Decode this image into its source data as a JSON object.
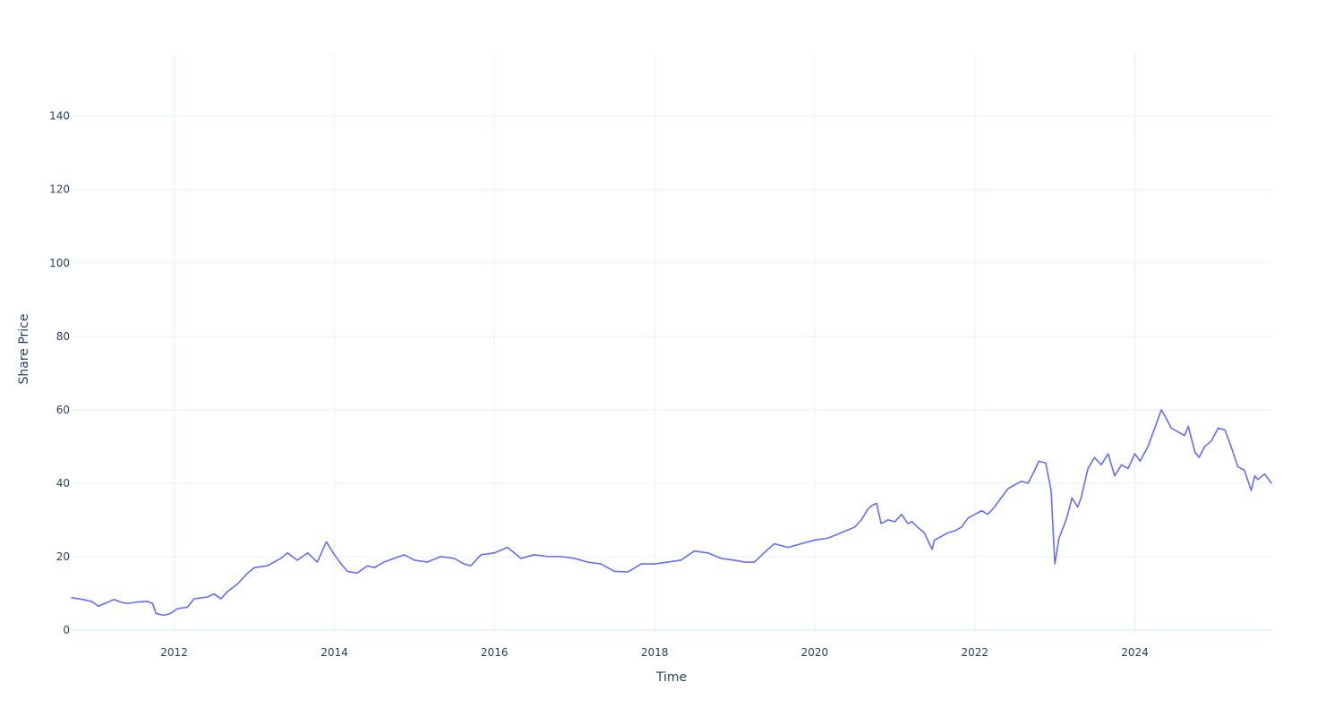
{
  "chart_data": {
    "type": "line",
    "title": "",
    "xlabel": "Time",
    "ylabel": "Share Price",
    "x_tick_labels": [
      "2012",
      "2014",
      "2016",
      "2018",
      "2020",
      "2022",
      "2024"
    ],
    "y_tick_labels": [
      "0",
      "20",
      "40",
      "60",
      "80",
      "100",
      "120",
      "140"
    ],
    "xlim": [
      "2010-09-20",
      "2025-09-15"
    ],
    "ylim": [
      -1,
      157
    ],
    "grid": true,
    "legend": "none",
    "series": [
      {
        "color": "#636efa",
        "points": [
          [
            "2010-09-20",
            8.8
          ],
          [
            "2010-11-01",
            8.4
          ],
          [
            "2010-12-20",
            7.8
          ],
          [
            "2011-01-20",
            6.5
          ],
          [
            "2011-03-01",
            7.5
          ],
          [
            "2011-04-01",
            8.3
          ],
          [
            "2011-05-01",
            7.6
          ],
          [
            "2011-06-01",
            7.2
          ],
          [
            "2011-07-15",
            7.6
          ],
          [
            "2011-09-01",
            7.8
          ],
          [
            "2011-09-25",
            7.2
          ],
          [
            "2011-10-10",
            4.5
          ],
          [
            "2011-11-15",
            4.0
          ],
          [
            "2011-12-15",
            4.5
          ],
          [
            "2012-01-15",
            5.8
          ],
          [
            "2012-03-01",
            6.2
          ],
          [
            "2012-04-01",
            8.5
          ],
          [
            "2012-06-01",
            9.0
          ],
          [
            "2012-07-01",
            9.8
          ],
          [
            "2012-08-01",
            8.5
          ],
          [
            "2012-09-01",
            10.5
          ],
          [
            "2012-10-15",
            12.5
          ],
          [
            "2012-12-01",
            15.5
          ],
          [
            "2013-01-01",
            17.0
          ],
          [
            "2013-03-01",
            17.5
          ],
          [
            "2013-05-01",
            19.5
          ],
          [
            "2013-06-01",
            21.0
          ],
          [
            "2013-07-15",
            19.0
          ],
          [
            "2013-09-01",
            21.0
          ],
          [
            "2013-10-15",
            18.5
          ],
          [
            "2013-11-25",
            24.0
          ],
          [
            "2014-01-01",
            20.5
          ],
          [
            "2014-02-01",
            18.0
          ],
          [
            "2014-03-01",
            16.0
          ],
          [
            "2014-04-15",
            15.5
          ],
          [
            "2014-06-01",
            17.5
          ],
          [
            "2014-07-01",
            17.0
          ],
          [
            "2014-08-15",
            18.5
          ],
          [
            "2014-10-01",
            19.5
          ],
          [
            "2014-11-15",
            20.5
          ],
          [
            "2015-01-01",
            19.0
          ],
          [
            "2015-03-01",
            18.5
          ],
          [
            "2015-05-01",
            20.0
          ],
          [
            "2015-07-01",
            19.5
          ],
          [
            "2015-08-15",
            18.0
          ],
          [
            "2015-09-15",
            17.5
          ],
          [
            "2015-11-01",
            20.5
          ],
          [
            "2016-01-01",
            21.0
          ],
          [
            "2016-03-01",
            22.5
          ],
          [
            "2016-05-01",
            19.5
          ],
          [
            "2016-07-01",
            20.5
          ],
          [
            "2016-09-01",
            20.0
          ],
          [
            "2016-11-01",
            20.0
          ],
          [
            "2017-01-01",
            19.5
          ],
          [
            "2017-03-01",
            18.5
          ],
          [
            "2017-05-01",
            18.0
          ],
          [
            "2017-07-01",
            16.0
          ],
          [
            "2017-09-01",
            15.8
          ],
          [
            "2017-11-01",
            18.0
          ],
          [
            "2018-01-01",
            18.0
          ],
          [
            "2018-03-01",
            18.5
          ],
          [
            "2018-05-01",
            19.0
          ],
          [
            "2018-07-01",
            21.5
          ],
          [
            "2018-09-01",
            21.0
          ],
          [
            "2018-11-01",
            19.5
          ],
          [
            "2019-01-01",
            19.0
          ],
          [
            "2019-02-15",
            18.5
          ],
          [
            "2019-04-01",
            18.5
          ],
          [
            "2019-05-15",
            21.0
          ],
          [
            "2019-07-01",
            23.5
          ],
          [
            "2019-09-01",
            22.5
          ],
          [
            "2019-11-01",
            23.5
          ],
          [
            "2020-01-01",
            24.5
          ],
          [
            "2020-03-01",
            25.0
          ],
          [
            "2020-05-01",
            26.5
          ],
          [
            "2020-07-01",
            28.0
          ],
          [
            "2020-08-01",
            30.0
          ],
          [
            "2020-09-01",
            33.0
          ],
          [
            "2020-09-20",
            34.0
          ],
          [
            "2020-10-10",
            34.5
          ],
          [
            "2020-10-30",
            29.0
          ],
          [
            "2020-12-01",
            30.0
          ],
          [
            "2021-01-01",
            29.5
          ],
          [
            "2021-02-01",
            31.5
          ],
          [
            "2021-03-01",
            29.0
          ],
          [
            "2021-03-20",
            29.5
          ],
          [
            "2021-04-15",
            28.0
          ],
          [
            "2021-05-15",
            26.5
          ],
          [
            "2021-06-20",
            22.0
          ],
          [
            "2021-07-01",
            24.5
          ],
          [
            "2021-08-01",
            25.5
          ],
          [
            "2021-09-01",
            26.5
          ],
          [
            "2021-10-01",
            27.0
          ],
          [
            "2021-11-01",
            28.0
          ],
          [
            "2021-12-01",
            30.5
          ],
          [
            "2022-01-01",
            31.5
          ],
          [
            "2022-02-01",
            32.5
          ],
          [
            "2022-03-01",
            31.5
          ],
          [
            "2022-04-01",
            33.5
          ],
          [
            "2022-05-01",
            36.0
          ],
          [
            "2022-06-01",
            38.5
          ],
          [
            "2022-07-01",
            39.5
          ],
          [
            "2022-08-01",
            40.5
          ],
          [
            "2022-09-01",
            40.0
          ],
          [
            "2022-10-01",
            43.5
          ],
          [
            "2022-10-20",
            46.0
          ],
          [
            "2022-11-20",
            45.5
          ],
          [
            "2022-12-15",
            38.0
          ],
          [
            "2023-01-01",
            18.0
          ],
          [
            "2023-01-20",
            25.0
          ],
          [
            "2023-02-15",
            29.0
          ],
          [
            "2023-03-01",
            31.5
          ],
          [
            "2023-03-20",
            36.0
          ],
          [
            "2023-04-15",
            33.5
          ],
          [
            "2023-05-01",
            36.0
          ],
          [
            "2023-06-01",
            44.0
          ],
          [
            "2023-07-01",
            47.0
          ],
          [
            "2023-08-01",
            45.0
          ],
          [
            "2023-09-01",
            48.0
          ],
          [
            "2023-10-01",
            42.0
          ],
          [
            "2023-11-01",
            45.0
          ],
          [
            "2023-12-01",
            44.0
          ],
          [
            "2024-01-01",
            48.0
          ],
          [
            "2024-01-25",
            46.0
          ],
          [
            "2024-03-01",
            50.0
          ],
          [
            "2024-04-01",
            55.0
          ],
          [
            "2024-05-01",
            60.0
          ],
          [
            "2024-05-20",
            58.0
          ],
          [
            "2024-06-15",
            55.0
          ],
          [
            "2024-07-15",
            54.0
          ],
          [
            "2024-08-15",
            53.0
          ],
          [
            "2024-09-01",
            55.5
          ],
          [
            "2024-10-01",
            48.5
          ],
          [
            "2024-10-20",
            47.0
          ],
          [
            "2024-11-15",
            50.0
          ],
          [
            "2024-12-15",
            51.5
          ],
          [
            "2025-01-15",
            55.0
          ],
          [
            "2025-02-15",
            54.5
          ],
          [
            "2025-03-15",
            50.0
          ],
          [
            "2025-04-15",
            44.5
          ],
          [
            "2025-05-15",
            43.5
          ],
          [
            "2025-06-15",
            38.0
          ],
          [
            "2025-07-01",
            42.0
          ],
          [
            "2025-07-15",
            41.0
          ],
          [
            "2025-08-15",
            42.5
          ],
          [
            "2025-09-15",
            40.0
          ]
        ]
      }
    ]
  }
}
